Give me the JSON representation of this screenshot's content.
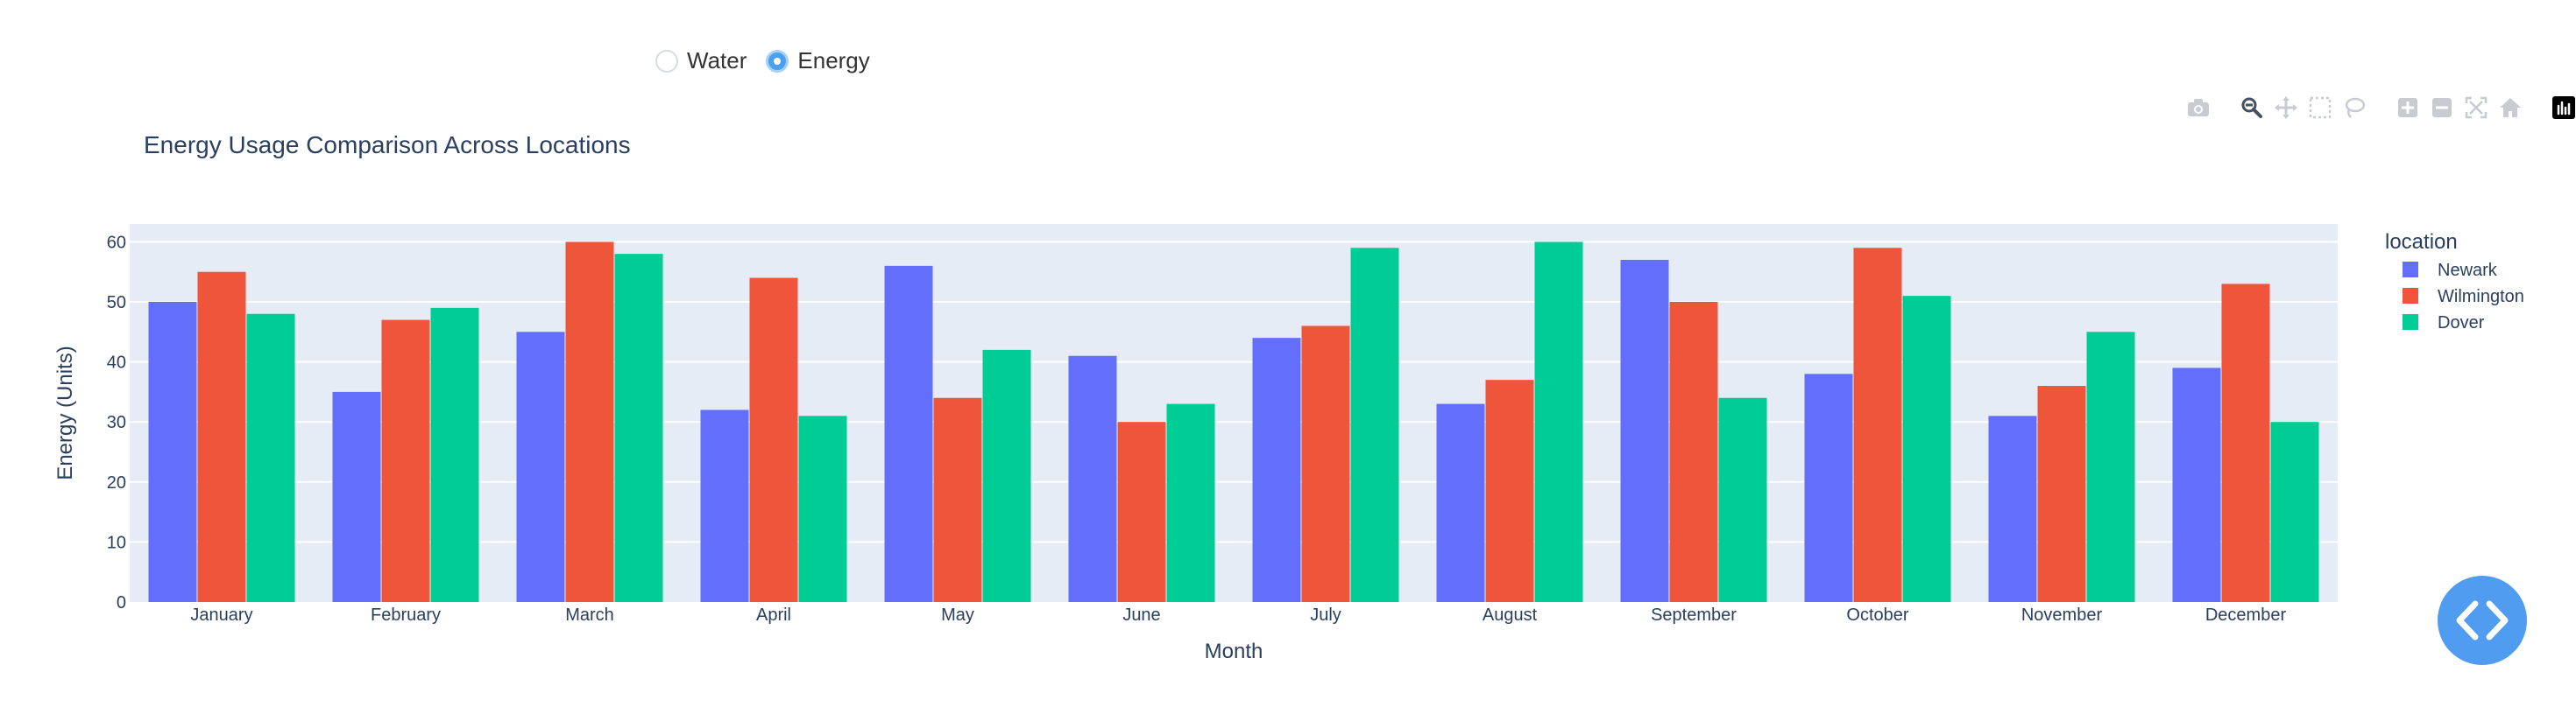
{
  "controls": {
    "options": [
      {
        "label": "Water",
        "selected": false
      },
      {
        "label": "Energy",
        "selected": true
      }
    ]
  },
  "modebar": {
    "icons": [
      "camera-icon",
      "zoom-icon",
      "pan-icon",
      "box-select-icon",
      "lasso-icon",
      "zoom-in-icon",
      "zoom-out-icon",
      "autoscale-icon",
      "reset-axes-icon",
      "plotly-logo-icon"
    ]
  },
  "code_toggle": {
    "icon": "code-brackets-icon",
    "color": "#4f9cf0"
  },
  "chart_data": {
    "type": "bar",
    "barmode": "group",
    "title": "Energy Usage Comparison Across Locations",
    "xlabel": "Month",
    "ylabel": "Energy (Units)",
    "ylim": [
      0,
      62
    ],
    "yticks": [
      0,
      10,
      20,
      30,
      40,
      50,
      60
    ],
    "grid": true,
    "legend_title": "location",
    "legend_position": "right",
    "categories": [
      "January",
      "February",
      "March",
      "April",
      "May",
      "June",
      "July",
      "August",
      "September",
      "October",
      "November",
      "December"
    ],
    "series": [
      {
        "name": "Newark",
        "color": "#636efa",
        "values": [
          50,
          35,
          45,
          32,
          56,
          41,
          44,
          33,
          57,
          38,
          31,
          39
        ]
      },
      {
        "name": "Wilmington",
        "color": "#ef553b",
        "values": [
          55,
          47,
          60,
          54,
          34,
          30,
          46,
          37,
          50,
          59,
          36,
          53
        ]
      },
      {
        "name": "Dover",
        "color": "#00cc96",
        "values": [
          48,
          49,
          58,
          31,
          42,
          33,
          59,
          60,
          34,
          51,
          45,
          30
        ]
      }
    ]
  }
}
